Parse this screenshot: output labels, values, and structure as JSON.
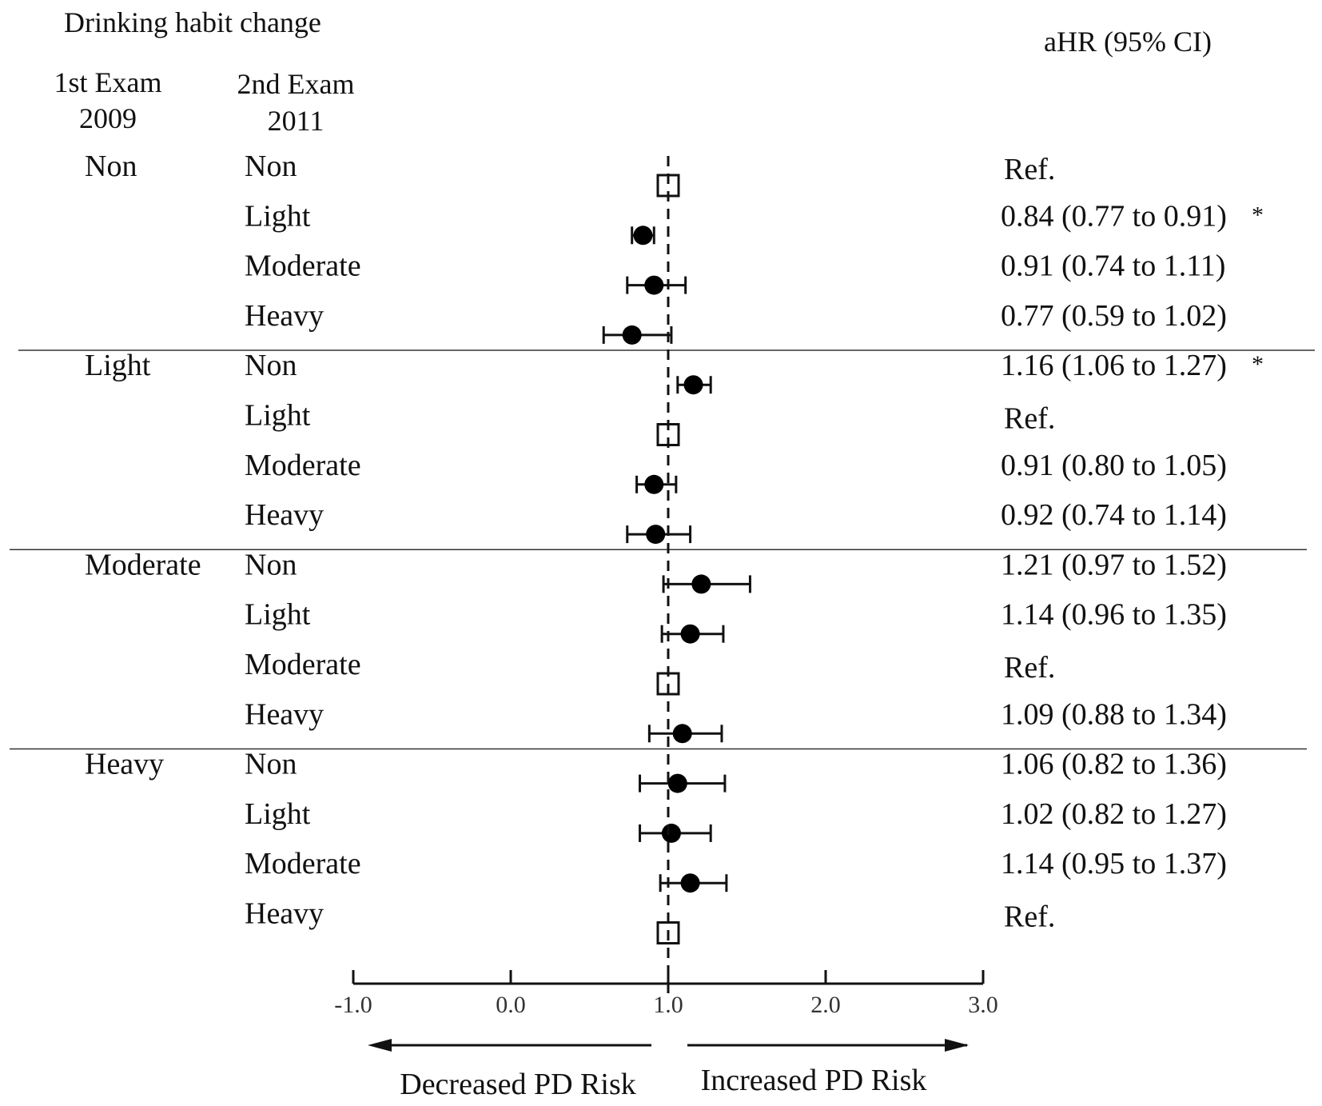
{
  "header": {
    "title": "Drinking habit change",
    "col1_line1": "1st Exam",
    "col1_line2": "2009",
    "col2_line1": "2nd  Exam",
    "col2_line2": "2011",
    "col3": "aHR  (95% CI)"
  },
  "chart_data": {
    "type": "forest",
    "title": "Drinking habit change",
    "xlabel": "",
    "ylabel": "",
    "xlim": [
      -1.0,
      3.0
    ],
    "x_ticks": [
      -1.0,
      0.0,
      1.0,
      2.0,
      3.0
    ],
    "x_tick_labels": [
      "-1.0",
      "0.0",
      "1.0",
      "2.0",
      "3.0"
    ],
    "reference_line": 1.0,
    "arrow_left_label": "Decreased PD Risk",
    "arrow_right_label": "Increased PD Risk",
    "groups": [
      {
        "exam1": "Non",
        "rows": [
          {
            "exam2": "Non",
            "ref": true,
            "hr": 1.0,
            "lo": null,
            "hi": null,
            "text": "Ref.",
            "sig": ""
          },
          {
            "exam2": "Light",
            "ref": false,
            "hr": 0.84,
            "lo": 0.77,
            "hi": 0.91,
            "text": "0.84 (0.77 to 0.91)",
            "sig": "*"
          },
          {
            "exam2": "Moderate",
            "ref": false,
            "hr": 0.91,
            "lo": 0.74,
            "hi": 1.11,
            "text": "0.91 (0.74 to 1.11)",
            "sig": ""
          },
          {
            "exam2": "Heavy",
            "ref": false,
            "hr": 0.77,
            "lo": 0.59,
            "hi": 1.02,
            "text": "0.77 (0.59 to 1.02)",
            "sig": ""
          }
        ]
      },
      {
        "exam1": "Light",
        "rows": [
          {
            "exam2": "Non",
            "ref": false,
            "hr": 1.16,
            "lo": 1.06,
            "hi": 1.27,
            "text": "1.16 (1.06 to 1.27)",
            "sig": "*"
          },
          {
            "exam2": "Light",
            "ref": true,
            "hr": 1.0,
            "lo": null,
            "hi": null,
            "text": "Ref.",
            "sig": ""
          },
          {
            "exam2": "Moderate",
            "ref": false,
            "hr": 0.91,
            "lo": 0.8,
            "hi": 1.05,
            "text": "0.91 (0.80 to 1.05)",
            "sig": ""
          },
          {
            "exam2": "Heavy",
            "ref": false,
            "hr": 0.92,
            "lo": 0.74,
            "hi": 1.14,
            "text": "0.92 (0.74 to 1.14)",
            "sig": ""
          }
        ]
      },
      {
        "exam1": "Moderate",
        "rows": [
          {
            "exam2": "Non",
            "ref": false,
            "hr": 1.21,
            "lo": 0.97,
            "hi": 1.52,
            "text": "1.21 (0.97 to 1.52)",
            "sig": ""
          },
          {
            "exam2": "Light",
            "ref": false,
            "hr": 1.14,
            "lo": 0.96,
            "hi": 1.35,
            "text": "1.14 (0.96 to 1.35)",
            "sig": ""
          },
          {
            "exam2": "Moderate",
            "ref": true,
            "hr": 1.0,
            "lo": null,
            "hi": null,
            "text": "Ref.",
            "sig": ""
          },
          {
            "exam2": "Heavy",
            "ref": false,
            "hr": 1.09,
            "lo": 0.88,
            "hi": 1.34,
            "text": "1.09 (0.88 to 1.34)",
            "sig": ""
          }
        ]
      },
      {
        "exam1": "Heavy",
        "rows": [
          {
            "exam2": "Non",
            "ref": false,
            "hr": 1.06,
            "lo": 0.82,
            "hi": 1.36,
            "text": "1.06 (0.82 to 1.36)",
            "sig": ""
          },
          {
            "exam2": "Light",
            "ref": false,
            "hr": 1.02,
            "lo": 0.82,
            "hi": 1.27,
            "text": "1.02 (0.82 to 1.27)",
            "sig": ""
          },
          {
            "exam2": "Moderate",
            "ref": false,
            "hr": 1.14,
            "lo": 0.95,
            "hi": 1.37,
            "text": "1.14 (0.95 to 1.37)",
            "sig": ""
          },
          {
            "exam2": "Heavy",
            "ref": true,
            "hr": 1.0,
            "lo": null,
            "hi": null,
            "text": "Ref.",
            "sig": ""
          }
        ]
      }
    ]
  }
}
